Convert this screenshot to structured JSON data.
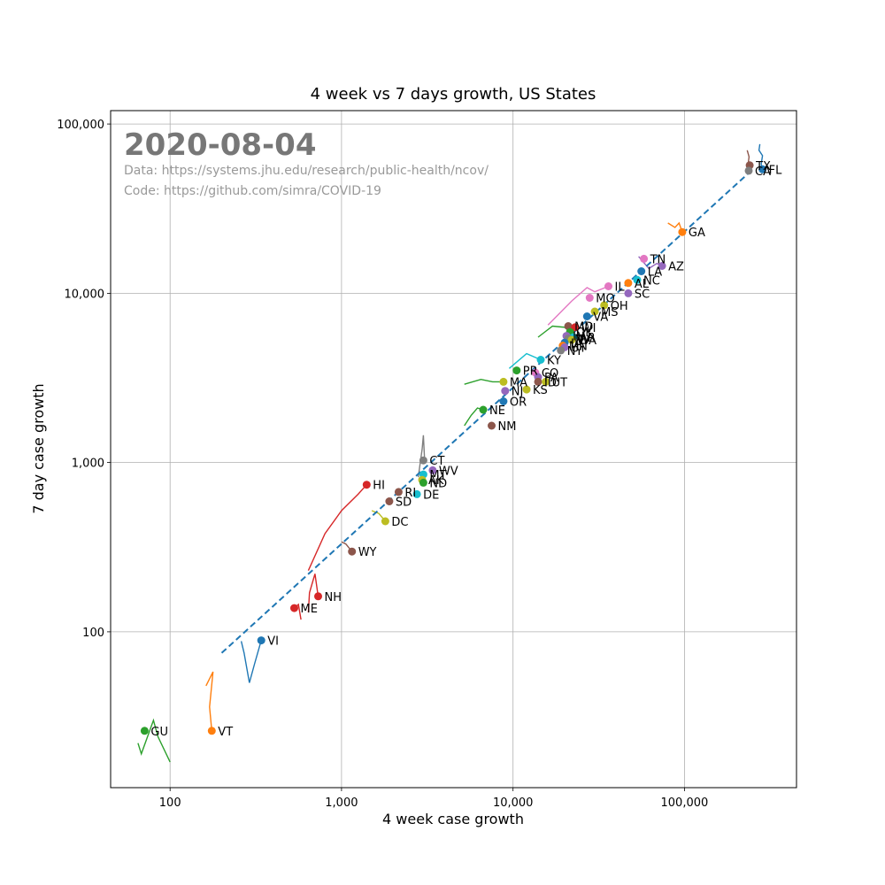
{
  "chart_data": {
    "type": "scatter",
    "title": "4 week vs 7 days growth, US States",
    "xlabel": "4 week case growth",
    "ylabel": "7 day case growth",
    "xscale": "log",
    "yscale": "log",
    "xlim": [
      45,
      450000
    ],
    "ylim": [
      12,
      120000
    ],
    "grid": true,
    "x_ticks": [
      {
        "value": 100,
        "label": "100"
      },
      {
        "value": 1000,
        "label": "1,000"
      },
      {
        "value": 10000,
        "label": "10,000"
      },
      {
        "value": 100000,
        "label": "100,000"
      }
    ],
    "y_ticks": [
      {
        "value": 100,
        "label": "100"
      },
      {
        "value": 1000,
        "label": "1,000"
      },
      {
        "value": 10000,
        "label": "10,000"
      },
      {
        "value": 100000,
        "label": "100,000"
      }
    ],
    "date": "2020-08-04",
    "source_data": "Data: https://systems.jhu.edu/research/public-health/ncov/",
    "source_code": "Code: https://github.com/simra/COVID-19",
    "trend_line": {
      "x": [
        200,
        240000
      ],
      "y": [
        75,
        52000
      ],
      "color": "#1f77b4",
      "style": "dashed"
    },
    "points": [
      {
        "label": "TX",
        "x": 240000,
        "y": 57000,
        "color": "#8c564b"
      },
      {
        "label": "FL",
        "x": 285000,
        "y": 54000,
        "color": "#1f77b4"
      },
      {
        "label": "CA",
        "x": 237000,
        "y": 53000,
        "color": "#7f7f7f"
      },
      {
        "label": "GA",
        "x": 97000,
        "y": 23000,
        "color": "#ff7f0e"
      },
      {
        "label": "TN",
        "x": 58000,
        "y": 16000,
        "color": "#e377c2"
      },
      {
        "label": "AZ",
        "x": 74000,
        "y": 14500,
        "color": "#9467bd"
      },
      {
        "label": "LA",
        "x": 56000,
        "y": 13500,
        "color": "#1f77b4"
      },
      {
        "label": "NC",
        "x": 53000,
        "y": 12000,
        "color": "#17becf"
      },
      {
        "label": "AL",
        "x": 47000,
        "y": 11500,
        "color": "#ff7f0e"
      },
      {
        "label": "IL",
        "x": 36000,
        "y": 11000,
        "color": "#e377c2"
      },
      {
        "label": "SC",
        "x": 47000,
        "y": 10000,
        "color": "#9467bd"
      },
      {
        "label": "MO",
        "x": 28000,
        "y": 9400,
        "color": "#e377c2"
      },
      {
        "label": "OH",
        "x": 34000,
        "y": 8500,
        "color": "#bcbd22"
      },
      {
        "label": "MS",
        "x": 30000,
        "y": 7800,
        "color": "#bcbd22"
      },
      {
        "label": "VA",
        "x": 27000,
        "y": 7300,
        "color": "#1f77b4"
      },
      {
        "label": "MD",
        "x": 21000,
        "y": 6400,
        "color": "#8c564b"
      },
      {
        "label": "WI",
        "x": 23000,
        "y": 6300,
        "color": "#d62728"
      },
      {
        "label": "OK",
        "x": 21500,
        "y": 5900,
        "color": "#2ca02c"
      },
      {
        "label": "IN",
        "x": 20500,
        "y": 5600,
        "color": "#9467bd"
      },
      {
        "label": "AR",
        "x": 22500,
        "y": 5500,
        "color": "#17becf"
      },
      {
        "label": "NV",
        "x": 21000,
        "y": 5400,
        "color": "#7f7f7f"
      },
      {
        "label": "WA",
        "x": 22000,
        "y": 5300,
        "color": "#bcbd22"
      },
      {
        "label": "IA",
        "x": 20000,
        "y": 5100,
        "color": "#1f77b4"
      },
      {
        "label": "MN",
        "x": 19500,
        "y": 4900,
        "color": "#ff7f0e"
      },
      {
        "label": "UT",
        "x": 20000,
        "y": 4800,
        "color": "#9467bd"
      },
      {
        "label": "NY",
        "x": 19000,
        "y": 4600,
        "color": "#7f7f7f"
      },
      {
        "label": "KY",
        "x": 14500,
        "y": 4050,
        "color": "#17becf"
      },
      {
        "label": "PR",
        "x": 10500,
        "y": 3500,
        "color": "#2ca02c"
      },
      {
        "label": "CO",
        "x": 13500,
        "y": 3400,
        "color": "#e377c2"
      },
      {
        "label": "PA",
        "x": 14000,
        "y": 3200,
        "color": "#9467bd"
      },
      {
        "label": "MA",
        "x": 8800,
        "y": 3000,
        "color": "#bcbd22"
      },
      {
        "label": "ID",
        "x": 14000,
        "y": 3000,
        "color": "#8c564b"
      },
      {
        "label": "UT",
        "x": 15500,
        "y": 3000,
        "color": "#bcbd22"
      },
      {
        "label": "NJ",
        "x": 9000,
        "y": 2650,
        "color": "#9467bd"
      },
      {
        "label": "KS",
        "x": 12000,
        "y": 2700,
        "color": "#bcbd22"
      },
      {
        "label": "OR",
        "x": 8800,
        "y": 2300,
        "color": "#1f77b4"
      },
      {
        "label": "NE",
        "x": 6700,
        "y": 2050,
        "color": "#2ca02c"
      },
      {
        "label": "NM",
        "x": 7500,
        "y": 1650,
        "color": "#8c564b"
      },
      {
        "label": "CT",
        "x": 3000,
        "y": 1030,
        "color": "#7f7f7f"
      },
      {
        "label": "WV",
        "x": 3400,
        "y": 900,
        "color": "#9467bd"
      },
      {
        "label": "MT",
        "x": 3000,
        "y": 850,
        "color": "#17becf"
      },
      {
        "label": "AK",
        "x": 2950,
        "y": 790,
        "color": "#bcbd22"
      },
      {
        "label": "ND",
        "x": 3000,
        "y": 760,
        "color": "#2ca02c"
      },
      {
        "label": "HI",
        "x": 1400,
        "y": 740,
        "color": "#d62728"
      },
      {
        "label": "RI",
        "x": 2150,
        "y": 670,
        "color": "#8c564b"
      },
      {
        "label": "DE",
        "x": 2750,
        "y": 650,
        "color": "#17becf"
      },
      {
        "label": "SD",
        "x": 1900,
        "y": 590,
        "color": "#8c564b"
      },
      {
        "label": "DC",
        "x": 1800,
        "y": 450,
        "color": "#bcbd22"
      },
      {
        "label": "WY",
        "x": 1150,
        "y": 298,
        "color": "#8c564b"
      },
      {
        "label": "NH",
        "x": 730,
        "y": 162,
        "color": "#d62728"
      },
      {
        "label": "ME",
        "x": 530,
        "y": 138,
        "color": "#d62728"
      },
      {
        "label": "VI",
        "x": 340,
        "y": 89,
        "color": "#1f77b4"
      },
      {
        "label": "GU",
        "x": 71,
        "y": 26,
        "color": "#2ca02c"
      },
      {
        "label": "VT",
        "x": 175,
        "y": 26,
        "color": "#ff7f0e"
      }
    ],
    "trails": [
      {
        "color": "#1f77b4",
        "points": [
          [
            275000,
            76000
          ],
          [
            272000,
            70000
          ],
          [
            285000,
            65000
          ],
          [
            280000,
            58000
          ],
          [
            285000,
            54000
          ]
        ]
      },
      {
        "color": "#8c564b",
        "points": [
          [
            232000,
            70000
          ],
          [
            238000,
            64000
          ],
          [
            235000,
            58000
          ],
          [
            240000,
            57000
          ]
        ]
      },
      {
        "color": "#ff7f0e",
        "points": [
          [
            80000,
            26000
          ],
          [
            88000,
            24500
          ],
          [
            93000,
            26000
          ],
          [
            97000,
            23000
          ]
        ]
      },
      {
        "color": "#9467bd",
        "points": [
          [
            54000,
            16500
          ],
          [
            62000,
            14000
          ],
          [
            69000,
            15000
          ],
          [
            74000,
            14500
          ]
        ]
      },
      {
        "color": "#e377c2",
        "points": [
          [
            16000,
            6500
          ],
          [
            22000,
            9000
          ],
          [
            27000,
            10800
          ],
          [
            30000,
            10200
          ],
          [
            36000,
            11000
          ]
        ]
      },
      {
        "color": "#2ca02c",
        "points": [
          [
            14000,
            5500
          ],
          [
            17000,
            6400
          ],
          [
            20000,
            6300
          ],
          [
            21500,
            5900
          ]
        ]
      },
      {
        "color": "#17becf",
        "points": [
          [
            9500,
            3600
          ],
          [
            12000,
            4400
          ],
          [
            14500,
            4050
          ]
        ]
      },
      {
        "color": "#2ca02c",
        "points": [
          [
            5200,
            2900
          ],
          [
            6500,
            3100
          ],
          [
            7600,
            3000
          ],
          [
            8800,
            3000
          ]
        ]
      },
      {
        "color": "#2ca02c",
        "points": [
          [
            5200,
            1650
          ],
          [
            5700,
            1900
          ],
          [
            6200,
            2100
          ],
          [
            6700,
            2050
          ]
        ]
      },
      {
        "color": "#7f7f7f",
        "points": [
          [
            2800,
            820
          ],
          [
            2950,
            1200
          ],
          [
            3000,
            1450
          ],
          [
            3050,
            1030
          ]
        ]
      },
      {
        "color": "#d62728",
        "points": [
          [
            640,
            230
          ],
          [
            800,
            380
          ],
          [
            1000,
            520
          ],
          [
            1250,
            650
          ],
          [
            1400,
            740
          ]
        ]
      },
      {
        "color": "#d62728",
        "points": [
          [
            640,
            130
          ],
          [
            650,
            170
          ],
          [
            700,
            220
          ],
          [
            730,
            162
          ]
        ]
      },
      {
        "color": "#d62728",
        "points": [
          [
            580,
            118
          ],
          [
            560,
            145
          ],
          [
            530,
            138
          ]
        ]
      },
      {
        "color": "#8c564b",
        "points": [
          [
            1000,
            340
          ],
          [
            1060,
            330
          ],
          [
            1150,
            298
          ]
        ]
      },
      {
        "color": "#bcbd22",
        "points": [
          [
            1500,
            520
          ],
          [
            1650,
            500
          ],
          [
            1800,
            450
          ]
        ]
      },
      {
        "color": "#1f77b4",
        "points": [
          [
            260,
            88
          ],
          [
            270,
            75
          ],
          [
            290,
            50
          ],
          [
            310,
            64
          ],
          [
            340,
            89
          ]
        ]
      },
      {
        "color": "#ff7f0e",
        "points": [
          [
            162,
            48
          ],
          [
            178,
            58
          ],
          [
            170,
            36
          ],
          [
            175,
            26
          ]
        ]
      },
      {
        "color": "#2ca02c",
        "points": [
          [
            65,
            22
          ],
          [
            68,
            19
          ],
          [
            80,
            30
          ],
          [
            85,
            24
          ],
          [
            100,
            17
          ]
        ]
      }
    ]
  }
}
